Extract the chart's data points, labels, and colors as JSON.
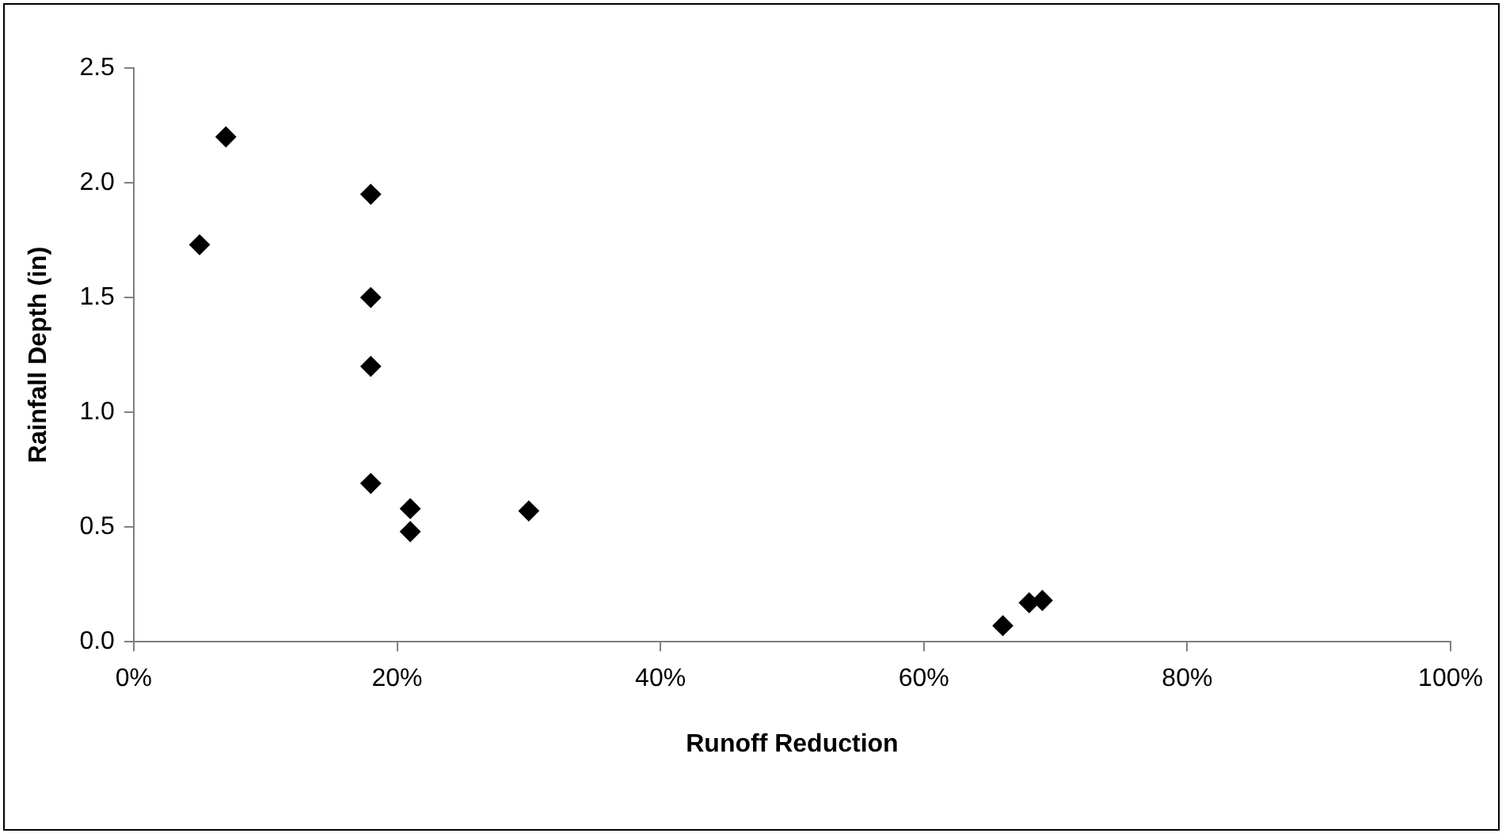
{
  "chart_data": {
    "type": "scatter",
    "xlabel": "Runoff Reduction",
    "ylabel": "Rainfall Depth (in)",
    "x": [
      5,
      7,
      18,
      18,
      18,
      18,
      21,
      21,
      30,
      66,
      68,
      69
    ],
    "values": [
      1.73,
      2.2,
      1.95,
      1.5,
      1.2,
      0.69,
      0.58,
      0.48,
      0.57,
      0.07,
      0.17,
      0.18
    ],
    "color": "#000000",
    "marker": "diamond",
    "grid": false,
    "legend": false,
    "xlim": [
      0,
      100
    ],
    "xticks": [
      {
        "value": 0,
        "label": "0%"
      },
      {
        "value": 20,
        "label": "20%"
      },
      {
        "value": 40,
        "label": "40%"
      },
      {
        "value": 60,
        "label": "60%"
      },
      {
        "value": 80,
        "label": "80%"
      },
      {
        "value": 100,
        "label": "100%"
      }
    ],
    "ylim": [
      0,
      2.5
    ],
    "yticks": [
      {
        "value": 0,
        "label": "0.0"
      },
      {
        "value": 0.5,
        "label": "0.5"
      },
      {
        "value": 1,
        "label": "1.0"
      },
      {
        "value": 1.5,
        "label": "1.5"
      },
      {
        "value": 2,
        "label": "2.0"
      },
      {
        "value": 2.5,
        "label": "2.5"
      }
    ]
  }
}
